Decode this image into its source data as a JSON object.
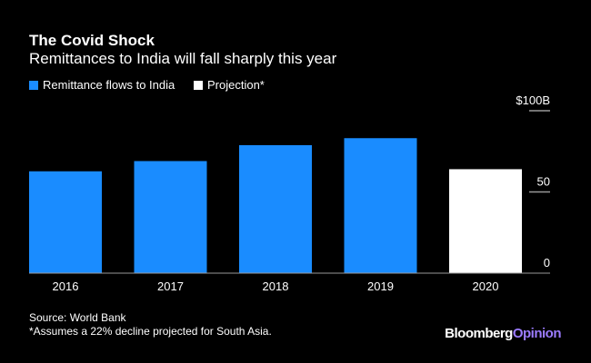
{
  "chart_data": {
    "type": "bar",
    "title": "The Covid Shock",
    "subtitle": "Remittances to India will fall sharply this year",
    "categories": [
      "2016",
      "2017",
      "2018",
      "2019",
      "2020"
    ],
    "values": [
      62.7,
      69.0,
      78.8,
      83.1,
      64.0
    ],
    "projected": [
      false,
      false,
      false,
      false,
      true
    ],
    "legend": [
      {
        "label": "Remittance flows to India",
        "color": "#1a8cff"
      },
      {
        "label": "Projection*",
        "color": "#ffffff"
      }
    ],
    "legend_placement": "top-left",
    "ylim": [
      0,
      100
    ],
    "yticks": [
      {
        "value": 0,
        "label": "0"
      },
      {
        "value": 50,
        "label": "50"
      },
      {
        "value": 100,
        "label": "$100B"
      }
    ],
    "xlabel": "",
    "ylabel": "",
    "grid": false
  },
  "footer": {
    "source": "Source: World Bank",
    "note": "*Assumes a 22% decline projected for South Asia.",
    "logo_a": "Bloomberg",
    "logo_b": "Opinion"
  }
}
